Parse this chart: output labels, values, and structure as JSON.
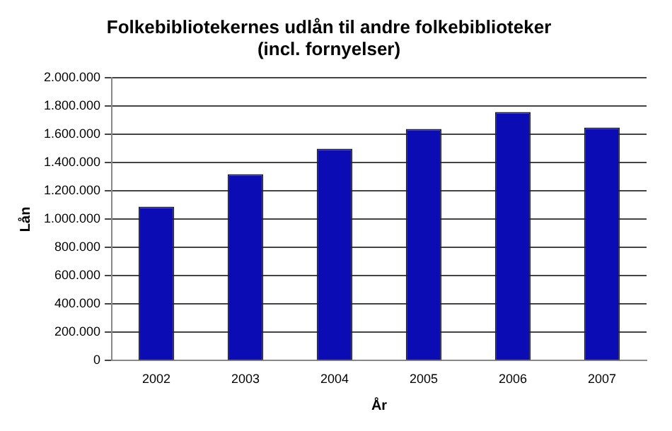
{
  "chart_data": {
    "type": "bar",
    "title": "Folkebibliotekernes udlån til andre folkebiblioteker",
    "subtitle": "(incl. fornyelser)",
    "xlabel": "År",
    "ylabel": "Lån",
    "categories": [
      "2002",
      "2003",
      "2004",
      "2005",
      "2006",
      "2007"
    ],
    "values": [
      1090000,
      1320000,
      1500000,
      1640000,
      1760000,
      1650000
    ],
    "color": "#0c0cb4",
    "ylim": [
      0,
      2000000
    ],
    "yticks": [
      {
        "value": 0,
        "label": "0"
      },
      {
        "value": 200000,
        "label": "200.000"
      },
      {
        "value": 400000,
        "label": "400.000"
      },
      {
        "value": 600000,
        "label": "600.000"
      },
      {
        "value": 800000,
        "label": "800.000"
      },
      {
        "value": 1000000,
        "label": "1.000.000"
      },
      {
        "value": 1200000,
        "label": "1.200.000"
      },
      {
        "value": 1400000,
        "label": "1.400.000"
      },
      {
        "value": 1600000,
        "label": "1.600.000"
      },
      {
        "value": 1800000,
        "label": "1.800.000"
      },
      {
        "value": 2000000,
        "label": "2.000.000"
      }
    ],
    "grid": "y"
  }
}
